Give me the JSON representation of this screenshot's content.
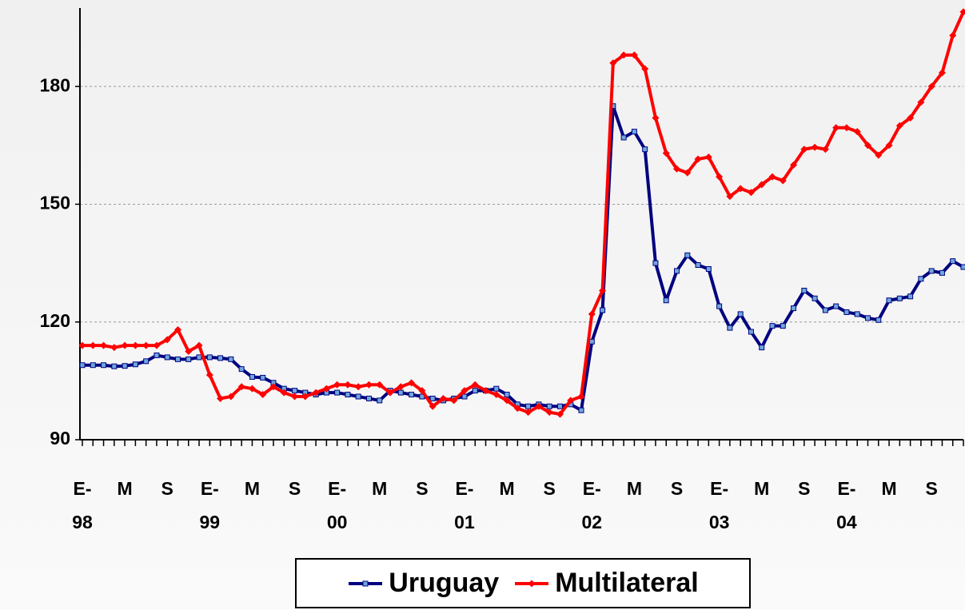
{
  "chart_data": {
    "type": "line",
    "categories": [
      "E-\n98",
      null,
      null,
      null,
      "M",
      null,
      null,
      null,
      "S",
      null,
      null,
      null,
      "E-\n99",
      null,
      null,
      null,
      "M",
      null,
      null,
      null,
      "S",
      null,
      null,
      null,
      "E-\n00",
      null,
      null,
      null,
      "M",
      null,
      null,
      null,
      "S",
      null,
      null,
      null,
      "E-\n01",
      null,
      null,
      null,
      "M",
      null,
      null,
      null,
      "S",
      null,
      null,
      null,
      "E-\n02",
      null,
      null,
      null,
      "M",
      null,
      null,
      null,
      "S",
      null,
      null,
      null,
      "E-\n03",
      null,
      null,
      null,
      "M",
      null,
      null,
      null,
      "S",
      null,
      null,
      null,
      "E-\n04",
      null,
      null,
      null,
      "M",
      null,
      null,
      null,
      "S",
      null,
      null,
      null
    ],
    "series": [
      {
        "name": "Uruguay",
        "color": "#000080",
        "values": [
          109,
          109,
          109,
          108.7,
          108.8,
          109.2,
          110,
          111.5,
          111,
          110.5,
          110.5,
          111,
          111,
          110.8,
          110.5,
          108,
          106,
          105.8,
          104.5,
          103,
          102.5,
          102,
          101.5,
          102,
          102,
          101.5,
          101,
          100.5,
          100,
          102.5,
          102,
          101.5,
          101,
          100.5,
          100,
          100.5,
          101,
          102.5,
          102.5,
          103,
          101.5,
          99,
          98.5,
          99,
          98.5,
          98.5,
          99,
          97.5,
          115,
          123,
          175,
          167,
          168.5,
          164,
          135,
          125.5,
          133,
          137,
          134.5,
          133.5,
          124,
          118.5,
          122,
          117.5,
          113.5,
          119,
          119,
          123.5,
          128,
          126,
          123,
          124,
          122.5,
          122,
          121,
          120.5,
          125.5,
          126,
          126.5,
          131,
          133,
          132.5,
          135.5,
          134
        ]
      },
      {
        "name": "Multilateral",
        "color": "#ff0000",
        "values": [
          114,
          114,
          114,
          113.5,
          114,
          114,
          114,
          114,
          115.5,
          118,
          112.5,
          114,
          106.5,
          100.5,
          101,
          103.5,
          103,
          101.5,
          103.5,
          102,
          101,
          101,
          102,
          103,
          104,
          104,
          103.5,
          104,
          104,
          102,
          103.5,
          104.5,
          102.5,
          98.5,
          100.5,
          100,
          102.5,
          104,
          102.5,
          101.5,
          100,
          98,
          97,
          98.5,
          97,
          96.5,
          100,
          101,
          122,
          128,
          186,
          188,
          188,
          184.5,
          172,
          163,
          159,
          158,
          161.5,
          162,
          157,
          152,
          154,
          153,
          155,
          157,
          156,
          160,
          164,
          164.5,
          164,
          169.5,
          169.5,
          168.5,
          165,
          162.5,
          165,
          170,
          172,
          176,
          180,
          183.5,
          193,
          199
        ]
      }
    ],
    "ylim": [
      90,
      200
    ],
    "yticks": [
      90,
      120,
      150,
      180
    ],
    "grid": true
  }
}
